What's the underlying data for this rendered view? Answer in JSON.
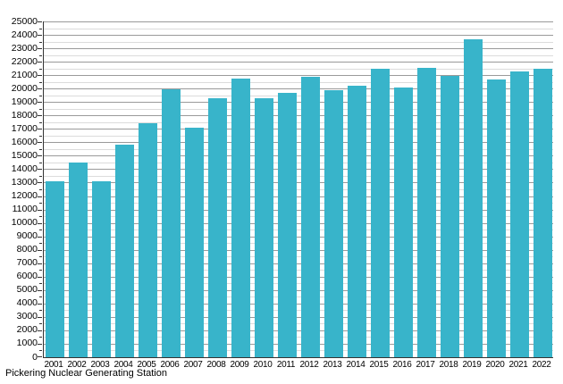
{
  "chart_data": {
    "type": "bar",
    "caption": "Pickering Nuclear Generating Station",
    "categories": [
      "2001",
      "2002",
      "2003",
      "2004",
      "2005",
      "2006",
      "2007",
      "2008",
      "2009",
      "2010",
      "2011",
      "2012",
      "2013",
      "2014",
      "2015",
      "2016",
      "2017",
      "2018",
      "2019",
      "2020",
      "2021",
      "2022"
    ],
    "values": [
      13100,
      14500,
      13100,
      15800,
      17450,
      19950,
      17100,
      19300,
      20750,
      19300,
      19700,
      20850,
      19900,
      20200,
      21450,
      20100,
      21550,
      20950,
      23700,
      20700,
      21300,
      21500
    ],
    "xlabel": "",
    "ylabel": "",
    "ylim": [
      0,
      25000
    ],
    "y_major_step": 1000,
    "y_minor_step": 500,
    "y_tick_labels": [
      "0",
      "1000",
      "2000",
      "3000",
      "4000",
      "5000",
      "6000",
      "7000",
      "8000",
      "9000",
      "10000",
      "11000",
      "12000",
      "13000",
      "14000",
      "15000",
      "16000",
      "17000",
      "18000",
      "19000",
      "20000",
      "21000",
      "22000",
      "23000",
      "24000",
      "25000"
    ],
    "grid": "horizontal-major-and-minor",
    "legend": "none",
    "bar_color": "#38b4ca",
    "major_grid_color": "#9a9a9a",
    "minor_grid_color": "#dcdcdc",
    "axis_color": "#333333"
  }
}
